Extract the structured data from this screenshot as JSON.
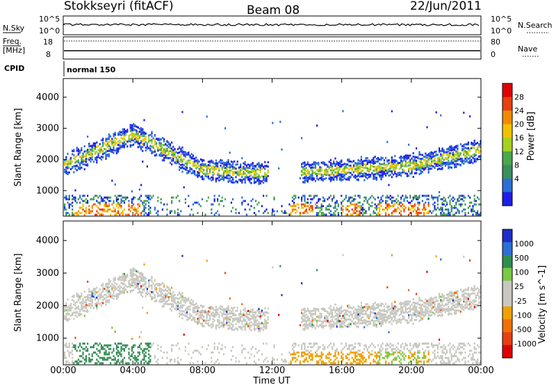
{
  "header": {
    "station": "Stokkseyri (fitACF)",
    "beam": "Beam 08",
    "date": "22/Jun/2011"
  },
  "top_panels": {
    "nsky_label": "N.Sky",
    "nsky_scale_top": "10^5",
    "nsky_scale_bottom": "10^0",
    "nsearch_label": "N.Search",
    "freq_label_1": "Freq.",
    "freq_label_2": "[MHz]",
    "freq_ticks": [
      "18",
      "8"
    ],
    "nave_label": "Nave",
    "nave_ticks": [
      "80",
      "0"
    ],
    "cpid_label": "CPID",
    "cpid_value": "normal 150"
  },
  "colors": {
    "power_scale": [
      "#1e1ee6",
      "#2a6fd6",
      "#3a8f5a",
      "#4aa84a",
      "#a6d21e",
      "#f2c200",
      "#f08a00",
      "#e84010",
      "#e00000"
    ],
    "velocity_scale": [
      "#1e2ec8",
      "#2a6fd6",
      "#2e8f4e",
      "#7ac943",
      "#c8c8c0",
      "#c8c8c0",
      "#f0a000",
      "#f07000",
      "#e84010",
      "#e00000"
    ]
  },
  "chart_data": [
    {
      "type": "heatmap",
      "title": "",
      "ylabel": "Slant Range [km]",
      "xlabel": "",
      "y_ticks": [
        "1000",
        "2000",
        "3000",
        "4000"
      ],
      "ylim": [
        180,
        4600
      ],
      "colorbar_label": "Power [dB]",
      "colorbar_ticks": [
        "4",
        "8",
        "12",
        "16",
        "20",
        "24",
        "28"
      ],
      "features": [
        {
          "name": "mid-range band",
          "x_hours": [
            0,
            4,
            8,
            11,
            16,
            20,
            24
          ],
          "range_km": [
            1850,
            2850,
            1700,
            1600,
            1700,
            1850,
            2350
          ]
        },
        {
          "name": "near-range echoes",
          "range_km": [
            300,
            900
          ]
        }
      ]
    },
    {
      "type": "heatmap",
      "title": "",
      "ylabel": "Slant Range [km]",
      "xlabel": "Time UT",
      "y_ticks": [
        "1000",
        "2000",
        "3000",
        "4000"
      ],
      "ylim": [
        180,
        4600
      ],
      "colorbar_label": "Velocity [m s^-1]",
      "colorbar_ticks": [
        "1000",
        "500",
        "100",
        "25",
        "-25",
        "-100",
        "-500",
        "-1000"
      ],
      "x_ticks": [
        "00:00",
        "04:00",
        "08:00",
        "12:00",
        "16:00",
        "20:00",
        "00:00"
      ]
    }
  ]
}
